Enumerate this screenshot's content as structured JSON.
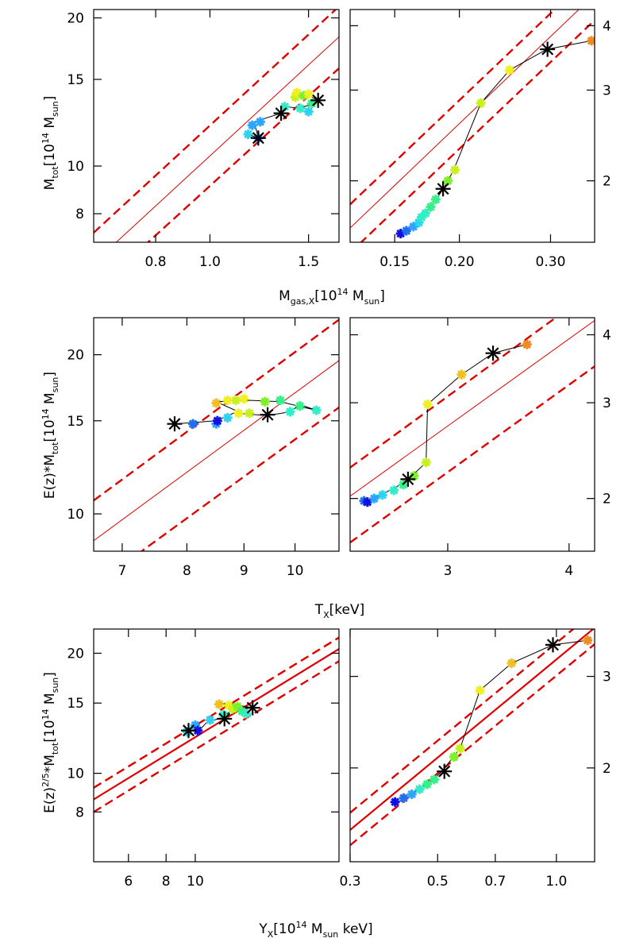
{
  "colors": {
    "fit_line": "#e00000",
    "black": "#000000",
    "scatter_scale": [
      "#1010e0",
      "#1f6ff5",
      "#2aa6ff",
      "#2ed3f0",
      "#30eec8",
      "#36f08a",
      "#7ef028",
      "#c8f020",
      "#f0f020",
      "#f0c020",
      "#f08a20"
    ]
  },
  "chart_data": [
    {
      "type": "scatter",
      "panel": "row1-left",
      "ylabel": {
        "main": "M",
        "sub": "tot",
        "bracket_open": "[10",
        "exp": "14",
        "unit": " M",
        "unit_sub": "sun",
        "bracket_close": "]"
      },
      "x_log": true,
      "y_log": true,
      "xlim": [
        0.62,
        1.7
      ],
      "ylim": [
        7.0,
        20.8
      ],
      "xticks": [
        {
          "v": 0.8,
          "label": "0.8"
        },
        {
          "v": 1.0,
          "label": "1.0"
        },
        {
          "v": 1.5,
          "label": "1.5"
        }
      ],
      "yticks": [
        {
          "v": 8,
          "label": "8"
        },
        {
          "v": 10,
          "label": "10"
        },
        {
          "v": 15,
          "label": "15"
        },
        {
          "v": 20,
          "label": "20"
        }
      ],
      "fit_lines": [
        {
          "style": "solid",
          "width": 1,
          "p1": [
            0.62,
            6.35
          ],
          "p2": [
            1.7,
            18.3
          ]
        },
        {
          "style": "dashed",
          "width": 2.4,
          "p1": [
            0.62,
            7.32
          ],
          "p2": [
            1.7,
            21.1
          ]
        },
        {
          "style": "dashed",
          "width": 2.4,
          "p1": [
            0.62,
            5.55
          ],
          "p2": [
            1.7,
            15.8
          ]
        }
      ],
      "track": [
        [
          1.17,
          11.6
        ],
        [
          1.22,
          11.4
        ],
        [
          1.2,
          12.3
        ],
        [
          1.34,
          12.8
        ],
        [
          1.36,
          13.2
        ],
        [
          1.45,
          13.1
        ],
        [
          1.5,
          13.3
        ],
        [
          1.56,
          13.6
        ],
        [
          1.5,
          13.9
        ],
        [
          1.42,
          13.9
        ]
      ],
      "colored_points": [
        {
          "x": 1.17,
          "y": 11.6,
          "c": 3
        },
        {
          "x": 1.19,
          "y": 12.1,
          "c": 2
        },
        {
          "x": 1.22,
          "y": 11.4,
          "c": 1
        },
        {
          "x": 1.23,
          "y": 12.3,
          "c": 2
        },
        {
          "x": 1.36,
          "y": 13.2,
          "c": 4
        },
        {
          "x": 1.42,
          "y": 13.8,
          "c": 7
        },
        {
          "x": 1.43,
          "y": 14.1,
          "c": 8
        },
        {
          "x": 1.45,
          "y": 13.1,
          "c": 4
        },
        {
          "x": 1.47,
          "y": 13.9,
          "c": 6
        },
        {
          "x": 1.5,
          "y": 14.0,
          "c": 8
        },
        {
          "x": 1.52,
          "y": 13.4,
          "c": 5
        },
        {
          "x": 1.5,
          "y": 12.9,
          "c": 3
        }
      ],
      "black_points": [
        {
          "x": 1.22,
          "y": 11.4
        },
        {
          "x": 1.34,
          "y": 12.8
        },
        {
          "x": 1.56,
          "y": 13.6
        }
      ]
    },
    {
      "type": "scatter",
      "panel": "row1-right",
      "x_log": true,
      "y_log": true,
      "xlim": [
        0.123,
        0.365
      ],
      "ylim": [
        1.52,
        4.3
      ],
      "xticks": [
        {
          "v": 0.15,
          "label": "0.15"
        },
        {
          "v": 0.2,
          "label": "0.20"
        },
        {
          "v": 0.3,
          "label": "0.30"
        }
      ],
      "yticks": [
        {
          "v": 2,
          "label": "2"
        },
        {
          "v": 3,
          "label": "3"
        },
        {
          "v": 4,
          "label": "4"
        }
      ],
      "fit_lines": [
        {
          "style": "solid",
          "width": 1,
          "p1": [
            0.123,
            1.62
          ],
          "p2": [
            0.365,
            4.6
          ]
        },
        {
          "style": "dashed",
          "width": 2.4,
          "p1": [
            0.123,
            1.8
          ],
          "p2": [
            0.365,
            5.1
          ]
        },
        {
          "style": "dashed",
          "width": 2.4,
          "p1": [
            0.123,
            1.45
          ],
          "p2": [
            0.365,
            4.1
          ]
        }
      ],
      "track": [
        [
          0.154,
          1.58
        ],
        [
          0.16,
          1.61
        ],
        [
          0.165,
          1.65
        ],
        [
          0.17,
          1.7
        ],
        [
          0.175,
          1.77
        ],
        [
          0.18,
          1.84
        ],
        [
          0.185,
          1.91
        ],
        [
          0.19,
          2.0
        ],
        [
          0.195,
          2.1
        ],
        [
          0.22,
          2.83
        ],
        [
          0.25,
          3.28
        ],
        [
          0.295,
          3.6
        ],
        [
          0.36,
          3.74
        ]
      ],
      "colored_points": [
        {
          "x": 0.154,
          "y": 1.58,
          "c": 0
        },
        {
          "x": 0.158,
          "y": 1.6,
          "c": 1
        },
        {
          "x": 0.163,
          "y": 1.63,
          "c": 2
        },
        {
          "x": 0.167,
          "y": 1.66,
          "c": 3
        },
        {
          "x": 0.169,
          "y": 1.7,
          "c": 4
        },
        {
          "x": 0.172,
          "y": 1.73,
          "c": 4
        },
        {
          "x": 0.176,
          "y": 1.78,
          "c": 5
        },
        {
          "x": 0.18,
          "y": 1.84,
          "c": 5
        },
        {
          "x": 0.19,
          "y": 2.0,
          "c": 6
        },
        {
          "x": 0.196,
          "y": 2.1,
          "c": 7
        },
        {
          "x": 0.22,
          "y": 2.83,
          "c": 7
        },
        {
          "x": 0.25,
          "y": 3.28,
          "c": 8
        },
        {
          "x": 0.36,
          "y": 3.74,
          "c": 10
        }
      ],
      "black_points": [
        {
          "x": 0.186,
          "y": 1.93
        },
        {
          "x": 0.296,
          "y": 3.6
        }
      ]
    },
    {
      "type": "scatter",
      "panel": "row2-left",
      "ylabel": {
        "main": "E(z)*M",
        "sub": "tot",
        "bracket_open": "[10",
        "exp": "14",
        "unit": " M",
        "unit_sub": "sun",
        "bracket_close": "]"
      },
      "x_log": true,
      "y_log": true,
      "xlim": [
        6.6,
        10.95
      ],
      "ylim": [
        8.5,
        23.5
      ],
      "xticks": [
        {
          "v": 7,
          "label": "7"
        },
        {
          "v": 8,
          "label": "8"
        },
        {
          "v": 9,
          "label": "9"
        },
        {
          "v": 10,
          "label": "10"
        }
      ],
      "yticks": [
        {
          "v": 10,
          "label": "10"
        },
        {
          "v": 15,
          "label": "15"
        },
        {
          "v": 20,
          "label": "20"
        }
      ],
      "fit_lines": [
        {
          "style": "solid",
          "width": 1,
          "p1": [
            6.6,
            8.9
          ],
          "p2": [
            10.95,
            19.5
          ]
        },
        {
          "style": "dashed",
          "width": 2.4,
          "p1": [
            6.6,
            10.6
          ],
          "p2": [
            10.95,
            23.3
          ]
        },
        {
          "style": "dashed",
          "width": 2.4,
          "p1": [
            6.6,
            7.3
          ],
          "p2": [
            10.95,
            15.9
          ]
        }
      ],
      "track": [
        [
          7.8,
          14.8
        ],
        [
          8.5,
          15.0
        ],
        [
          8.8,
          15.5
        ],
        [
          9.45,
          15.35
        ],
        [
          9.9,
          15.6
        ],
        [
          10.1,
          16.1
        ],
        [
          10.45,
          15.7
        ],
        [
          9.7,
          16.3
        ],
        [
          9.1,
          16.4
        ],
        [
          8.5,
          16.3
        ],
        [
          8.9,
          15.6
        ]
      ],
      "colored_points": [
        {
          "x": 8.1,
          "y": 14.8,
          "c": 1
        },
        {
          "x": 8.5,
          "y": 14.8,
          "c": 2
        },
        {
          "x": 8.52,
          "y": 15.0,
          "c": 0
        },
        {
          "x": 8.7,
          "y": 15.2,
          "c": 3
        },
        {
          "x": 8.9,
          "y": 15.5,
          "c": 8
        },
        {
          "x": 9.1,
          "y": 15.5,
          "c": 7
        },
        {
          "x": 8.5,
          "y": 16.2,
          "c": 9
        },
        {
          "x": 8.7,
          "y": 16.4,
          "c": 8
        },
        {
          "x": 8.85,
          "y": 16.4,
          "c": 7
        },
        {
          "x": 9.0,
          "y": 16.5,
          "c": 8
        },
        {
          "x": 9.4,
          "y": 16.3,
          "c": 6
        },
        {
          "x": 9.7,
          "y": 16.4,
          "c": 5
        },
        {
          "x": 9.9,
          "y": 15.6,
          "c": 4
        },
        {
          "x": 10.1,
          "y": 16.0,
          "c": 5
        },
        {
          "x": 10.45,
          "y": 15.7,
          "c": 4
        }
      ],
      "black_points": [
        {
          "x": 7.8,
          "y": 14.8
        },
        {
          "x": 9.45,
          "y": 15.4
        }
      ]
    },
    {
      "type": "scatter",
      "panel": "row2-right",
      "x_log": true,
      "y_log": true,
      "xlim": [
        2.38,
        4.25
      ],
      "ylim": [
        1.6,
        4.3
      ],
      "xticks": [
        {
          "v": 3,
          "label": "3"
        },
        {
          "v": 4,
          "label": "4"
        }
      ],
      "yticks": [
        {
          "v": 2,
          "label": "2"
        },
        {
          "v": 3,
          "label": "3"
        },
        {
          "v": 4,
          "label": "4"
        }
      ],
      "fit_lines": [
        {
          "style": "solid",
          "width": 1,
          "p1": [
            2.38,
            2.02
          ],
          "p2": [
            4.25,
            4.25
          ]
        },
        {
          "style": "dashed",
          "width": 2.4,
          "p1": [
            2.38,
            2.28
          ],
          "p2": [
            4.25,
            4.85
          ]
        },
        {
          "style": "dashed",
          "width": 2.4,
          "p1": [
            2.38,
            1.66
          ],
          "p2": [
            4.25,
            3.5
          ]
        }
      ],
      "track": [
        [
          2.5,
          2.0
        ],
        [
          2.55,
          2.02
        ],
        [
          2.6,
          2.06
        ],
        [
          2.68,
          2.12
        ],
        [
          2.74,
          2.18
        ],
        [
          2.85,
          2.33
        ],
        [
          2.86,
          2.98
        ],
        [
          3.1,
          3.38
        ],
        [
          3.34,
          3.7
        ],
        [
          3.62,
          3.84
        ]
      ],
      "colored_points": [
        {
          "x": 2.46,
          "y": 1.98,
          "c": 1
        },
        {
          "x": 2.48,
          "y": 1.97,
          "c": 0
        },
        {
          "x": 2.52,
          "y": 2.0,
          "c": 2
        },
        {
          "x": 2.57,
          "y": 2.03,
          "c": 3
        },
        {
          "x": 2.64,
          "y": 2.07,
          "c": 4
        },
        {
          "x": 2.7,
          "y": 2.12,
          "c": 5
        },
        {
          "x": 2.77,
          "y": 2.2,
          "c": 6
        },
        {
          "x": 2.85,
          "y": 2.33,
          "c": 7
        },
        {
          "x": 2.86,
          "y": 2.98,
          "c": 8
        },
        {
          "x": 3.1,
          "y": 3.38,
          "c": 9
        },
        {
          "x": 3.62,
          "y": 3.84,
          "c": 10
        }
      ],
      "black_points": [
        {
          "x": 2.73,
          "y": 2.17
        },
        {
          "x": 3.34,
          "y": 3.7
        }
      ]
    },
    {
      "type": "scatter",
      "panel": "row3-left",
      "ylabel": {
        "main": "E(z)",
        "sup": "2/5",
        "mid": "*M",
        "sub": "tot",
        "bracket_open": "[10",
        "exp": "14",
        "unit": " M",
        "unit_sub": "sun",
        "bracket_close": "]"
      },
      "x_log": true,
      "y_log": true,
      "xlim": [
        4.6,
        30.0
      ],
      "ylim": [
        6.0,
        23.0
      ],
      "xticks": [
        {
          "v": 6,
          "label": "6"
        },
        {
          "v": 8,
          "label": "8"
        },
        {
          "v": 10,
          "label": "10"
        }
      ],
      "yticks": [
        {
          "v": 8,
          "label": "8"
        },
        {
          "v": 10,
          "label": "10"
        },
        {
          "v": 15,
          "label": "15"
        },
        {
          "v": 20,
          "label": "20"
        }
      ],
      "fit_lines": [
        {
          "style": "solid",
          "width": 2.2,
          "p1": [
            4.6,
            8.6
          ],
          "p2": [
            30.0,
            20.5
          ]
        },
        {
          "style": "dashed",
          "width": 2.4,
          "p1": [
            4.6,
            9.2
          ],
          "p2": [
            30.0,
            21.9
          ]
        },
        {
          "style": "dashed",
          "width": 2.4,
          "p1": [
            4.6,
            8.0
          ],
          "p2": [
            30.0,
            19.1
          ]
        }
      ],
      "track": [
        [
          9.5,
          12.8
        ],
        [
          10.3,
          12.8
        ],
        [
          11.0,
          13.5
        ],
        [
          12.0,
          13.7
        ],
        [
          13.3,
          14.4
        ],
        [
          15.5,
          14.6
        ],
        [
          13.3,
          14.9
        ],
        [
          12.0,
          15.0
        ]
      ],
      "colored_points": [
        {
          "x": 9.4,
          "y": 12.7,
          "c": 3
        },
        {
          "x": 10.0,
          "y": 13.2,
          "c": 2
        },
        {
          "x": 10.2,
          "y": 12.8,
          "c": 0
        },
        {
          "x": 11.2,
          "y": 13.6,
          "c": 3
        },
        {
          "x": 12.0,
          "y": 14.9,
          "c": 9
        },
        {
          "x": 12.4,
          "y": 14.0,
          "c": 4
        },
        {
          "x": 12.9,
          "y": 14.8,
          "c": 8
        },
        {
          "x": 13.3,
          "y": 14.5,
          "c": 7
        },
        {
          "x": 13.8,
          "y": 14.7,
          "c": 6
        },
        {
          "x": 14.3,
          "y": 14.3,
          "c": 5
        },
        {
          "x": 14.8,
          "y": 14.1,
          "c": 4
        }
      ],
      "black_points": [
        {
          "x": 9.5,
          "y": 12.8
        },
        {
          "x": 12.5,
          "y": 13.7
        },
        {
          "x": 15.5,
          "y": 14.6
        }
      ]
    },
    {
      "type": "scatter",
      "panel": "row3-right",
      "x_log": true,
      "y_log": true,
      "xlim": [
        0.3,
        1.25
      ],
      "ylim": [
        1.32,
        3.7
      ],
      "xticks": [
        {
          "v": 0.3,
          "label": "0.3"
        },
        {
          "v": 0.5,
          "label": "0.5"
        },
        {
          "v": 0.7,
          "label": "0.7"
        },
        {
          "v": 1.0,
          "label": "1.0"
        }
      ],
      "yticks": [
        {
          "v": 2,
          "label": "2"
        },
        {
          "v": 3,
          "label": "3"
        }
      ],
      "fit_lines": [
        {
          "style": "solid",
          "width": 2.2,
          "p1": [
            0.3,
            1.52
          ],
          "p2": [
            1.25,
            3.72
          ]
        },
        {
          "style": "dashed",
          "width": 2.4,
          "p1": [
            0.3,
            1.64
          ],
          "p2": [
            1.25,
            4.0
          ]
        },
        {
          "style": "dashed",
          "width": 2.4,
          "p1": [
            0.3,
            1.42
          ],
          "p2": [
            1.25,
            3.46
          ]
        }
      ],
      "track": [
        [
          0.395,
          1.72
        ],
        [
          0.42,
          1.76
        ],
        [
          0.45,
          1.82
        ],
        [
          0.49,
          1.91
        ],
        [
          0.51,
          1.96
        ],
        [
          0.57,
          2.18
        ],
        [
          0.64,
          2.82
        ],
        [
          0.77,
          3.18
        ],
        [
          0.98,
          3.45
        ],
        [
          1.2,
          3.52
        ]
      ],
      "colored_points": [
        {
          "x": 0.39,
          "y": 1.72,
          "c": 0
        },
        {
          "x": 0.41,
          "y": 1.75,
          "c": 1
        },
        {
          "x": 0.43,
          "y": 1.78,
          "c": 2
        },
        {
          "x": 0.45,
          "y": 1.82,
          "c": 4
        },
        {
          "x": 0.47,
          "y": 1.86,
          "c": 5
        },
        {
          "x": 0.49,
          "y": 1.9,
          "c": 5
        },
        {
          "x": 0.55,
          "y": 2.1,
          "c": 6
        },
        {
          "x": 0.57,
          "y": 2.18,
          "c": 7
        },
        {
          "x": 0.64,
          "y": 2.82,
          "c": 8
        },
        {
          "x": 0.77,
          "y": 3.18,
          "c": 9
        },
        {
          "x": 1.2,
          "y": 3.52,
          "c": 10
        }
      ],
      "black_points": [
        {
          "x": 0.52,
          "y": 1.97
        },
        {
          "x": 0.98,
          "y": 3.45
        }
      ]
    }
  ],
  "xlabels": [
    {
      "main": "M",
      "sub": "gas,X",
      "bracket_open": "[10",
      "exp": "14",
      "unit": " M",
      "unit_sub": "sun",
      "bracket_close": "]"
    },
    {
      "main": "T",
      "sub": "X",
      "bracket_open": "[keV",
      "bracket_close": "]"
    },
    {
      "main": "Y",
      "sub": "X",
      "bracket_open": "[10",
      "exp": "14",
      "unit": " M",
      "unit_sub": "sun",
      "unit2": " keV",
      "bracket_close": "]"
    }
  ]
}
